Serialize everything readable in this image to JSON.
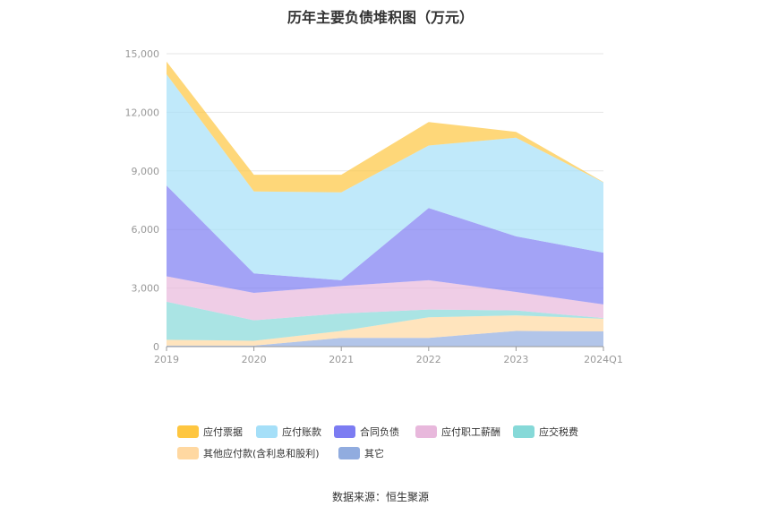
{
  "title": "历年主要负债堆积图（万元）",
  "source": "数据来源：恒生聚源",
  "chart_data": {
    "type": "area",
    "stacked": true,
    "categories": [
      "2019",
      "2020",
      "2021",
      "2022",
      "2023",
      "2024Q1"
    ],
    "ylim": [
      0,
      15000
    ],
    "yticks": [
      "0",
      "3,000",
      "6,000",
      "9,000",
      "12,000",
      "15,000"
    ],
    "ytick_values": [
      0,
      3000,
      6000,
      9000,
      12000,
      15000
    ],
    "grid": true,
    "legend_position": "bottom",
    "series": [
      {
        "name": "其它",
        "color": "#91acdf",
        "values": [
          50,
          50,
          450,
          450,
          800,
          780
        ]
      },
      {
        "name": "其他应付款(含利息和股利)",
        "color": "#ffd8a1",
        "values": [
          300,
          250,
          350,
          1050,
          800,
          650
        ]
      },
      {
        "name": "应交税费",
        "color": "#86d9d8",
        "values": [
          1950,
          1050,
          900,
          400,
          250,
          30
        ]
      },
      {
        "name": "应付职工薪酬",
        "color": "#e8b8dc",
        "values": [
          1300,
          1400,
          1400,
          1500,
          950,
          700
        ]
      },
      {
        "name": "合同负债",
        "color": "#7c7cf2",
        "values": [
          4650,
          1000,
          300,
          3700,
          2850,
          2650
        ]
      },
      {
        "name": "应付账款",
        "color": "#a5dff8",
        "values": [
          5700,
          4200,
          4500,
          3200,
          5050,
          3600
        ]
      },
      {
        "name": "应付票据",
        "color": "#fec640",
        "values": [
          650,
          850,
          900,
          1200,
          300,
          20
        ]
      }
    ]
  },
  "legend_items": [
    {
      "label": "应付票据",
      "color": "#fec640"
    },
    {
      "label": "应付账款",
      "color": "#a5dff8"
    },
    {
      "label": "合同负债",
      "color": "#7c7cf2"
    },
    {
      "label": "应付职工薪酬",
      "color": "#e8b8dc"
    },
    {
      "label": "应交税费",
      "color": "#86d9d8"
    },
    {
      "label": "其他应付款(含利息和股利)",
      "color": "#ffd8a1"
    },
    {
      "label": "其它",
      "color": "#91acdf"
    }
  ]
}
